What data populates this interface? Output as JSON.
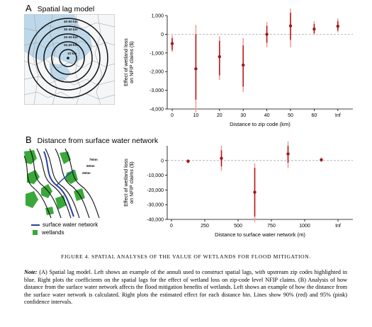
{
  "panel_a": {
    "letter": "A",
    "title": "Spatial lag model",
    "ring_labels": [
      "40-50 km",
      "30-40 km",
      "20-30 km",
      "10-20 km",
      "10 km"
    ]
  },
  "panel_b": {
    "letter": "B",
    "title": "Distance from surface water network",
    "ring_labels": [
      "750m",
      "500m",
      "250m"
    ],
    "legend": {
      "water": "surface water network",
      "wetlands": "wetlands"
    }
  },
  "colors": {
    "ci90": "#b41e1e",
    "ci95": "#f2a0a0",
    "point": "#a01818",
    "zero_line": "#aaaaaa",
    "water": "#2a3fa0",
    "wetlands": "#3aa73a",
    "zips": "#bcd8ea"
  },
  "chart_data": [
    {
      "type": "scatter",
      "title": "",
      "xlabel": "Distance to zip code (km)",
      "ylabel_lines": [
        "Effect of wetland loss",
        "on NFIP claims ($)"
      ],
      "categories": [
        "0",
        "10",
        "20",
        "30",
        "40",
        "50",
        "60",
        "Inf"
      ],
      "ylim": [
        -4000,
        1000
      ],
      "yticks": [
        -4000,
        -3000,
        -2000,
        -1000,
        0,
        1000
      ],
      "ytick_labels": [
        "-4,000",
        "-3,000",
        "-2,000",
        "-1,000",
        "0",
        "1,000"
      ],
      "estimate": [
        -500,
        -1850,
        -1200,
        -1650,
        0,
        450,
        280,
        430
      ],
      "ci90": [
        [
          -850,
          -200
        ],
        [
          -3500,
          0
        ],
        [
          -2200,
          -350
        ],
        [
          -2800,
          -600
        ],
        [
          -450,
          450
        ],
        [
          -300,
          1150
        ],
        [
          50,
          550
        ],
        [
          200,
          700
        ]
      ],
      "ci95": [
        [
          -950,
          -50
        ],
        [
          -4200,
          500
        ],
        [
          -2450,
          -100
        ],
        [
          -3100,
          -200
        ],
        [
          -700,
          650
        ],
        [
          -700,
          1600
        ],
        [
          -50,
          700
        ],
        [
          100,
          850
        ]
      ],
      "zero_line": "dashed",
      "grid": false
    },
    {
      "type": "scatter",
      "title": "",
      "xlabel": "Distance to surface water network (m)",
      "ylabel_lines": [
        "Effect of wetland loss",
        "on NFIP claims ($)"
      ],
      "xticks": [
        "0",
        "250",
        "500",
        "750",
        "1000",
        "Inf"
      ],
      "x": [
        125,
        375,
        625,
        875,
        1125
      ],
      "ylim": [
        -40000,
        10000
      ],
      "yticks": [
        -40000,
        -30000,
        -20000,
        -10000,
        0
      ],
      "ytick_labels": [
        "-40,000",
        "-30,000",
        "-20,000",
        "-10,000",
        "0"
      ],
      "estimate": [
        -500,
        1500,
        -21500,
        4500,
        500
      ],
      "ci90": [
        [
          -1500,
          500
        ],
        [
          -4000,
          7000
        ],
        [
          -38000,
          -5000
        ],
        [
          -1500,
          10000
        ],
        [
          -500,
          1500
        ]
      ],
      "ci95": [
        [
          -2000,
          1000
        ],
        [
          -7000,
          10000
        ],
        [
          -42000,
          -2000
        ],
        [
          -5000,
          13000
        ],
        [
          -1000,
          2000
        ]
      ],
      "zero_line": "dashed",
      "grid": false
    }
  ],
  "caption": "FIGURE 4. SPATIAL ANALYSES OF THE VALUE OF WETLANDS FOR FLOOD MITIGATION.",
  "note": {
    "label": "Note:",
    "text": "(A) Spatial lag model. Left shows an example of the annuli used to construct spatial lags, with upstream zip codes highlighted in blue. Right plots the coefficients on the spatial lags for the effect of wetland loss on zip-code level NFIP claims. (B) Analysis of how distance from the surface water network affects the flood mitigation benefits of wetlands. Left shows an example of how the distance from the surface water network is calculated. Right plots the estimated effect for each distance bin. Lines show 90% (red) and 95% (pink) confidence intervals."
  }
}
